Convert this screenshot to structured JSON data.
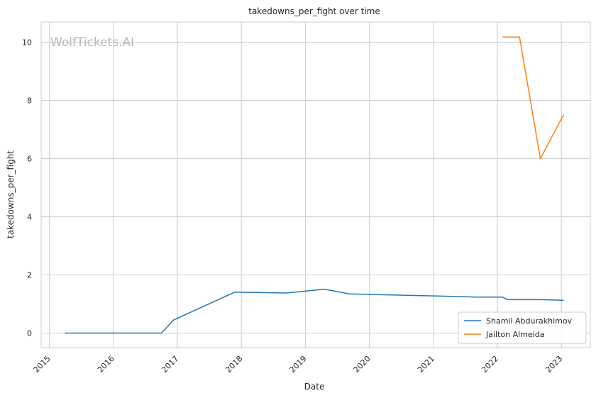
{
  "watermark": "WolfTickets.AI",
  "chart_data": {
    "type": "line",
    "title": "takedowns_per_fight over time",
    "xlabel": "Date",
    "ylabel": "takedowns_per_fight",
    "x_ticks": [
      "2015",
      "2016",
      "2017",
      "2018",
      "2019",
      "2020",
      "2021",
      "2022",
      "2023"
    ],
    "y_ticks": [
      "0",
      "2",
      "4",
      "6",
      "8",
      "10"
    ],
    "xlim": [
      "2014-11-15",
      "2023-06-15"
    ],
    "ylim": [
      -0.5,
      10.7
    ],
    "grid": true,
    "legend_position": "lower-right",
    "series": [
      {
        "name": "Shamil Abdurakhimov",
        "color": "#1f77b4",
        "points": [
          {
            "x": "2015-04-01",
            "y": 0.0
          },
          {
            "x": "2016-01-01",
            "y": 0.0
          },
          {
            "x": "2016-10-01",
            "y": 0.0
          },
          {
            "x": "2016-12-10",
            "y": 0.45
          },
          {
            "x": "2017-11-25",
            "y": 1.41
          },
          {
            "x": "2018-09-15",
            "y": 1.38
          },
          {
            "x": "2019-04-20",
            "y": 1.51
          },
          {
            "x": "2019-09-07",
            "y": 1.35
          },
          {
            "x": "2020-01-01",
            "y": 1.33
          },
          {
            "x": "2021-01-01",
            "y": 1.28
          },
          {
            "x": "2021-09-04",
            "y": 1.24
          },
          {
            "x": "2022-01-29",
            "y": 1.24
          },
          {
            "x": "2022-03-01",
            "y": 1.15
          },
          {
            "x": "2022-09-03",
            "y": 1.15
          },
          {
            "x": "2023-01-14",
            "y": 1.13
          }
        ]
      },
      {
        "name": "Jailton Almeida",
        "color": "#ff7f0e",
        "points": [
          {
            "x": "2022-01-29",
            "y": 10.18
          },
          {
            "x": "2022-05-07",
            "y": 10.18
          },
          {
            "x": "2022-09-03",
            "y": 6.0
          },
          {
            "x": "2023-01-14",
            "y": 7.52
          }
        ]
      }
    ]
  }
}
